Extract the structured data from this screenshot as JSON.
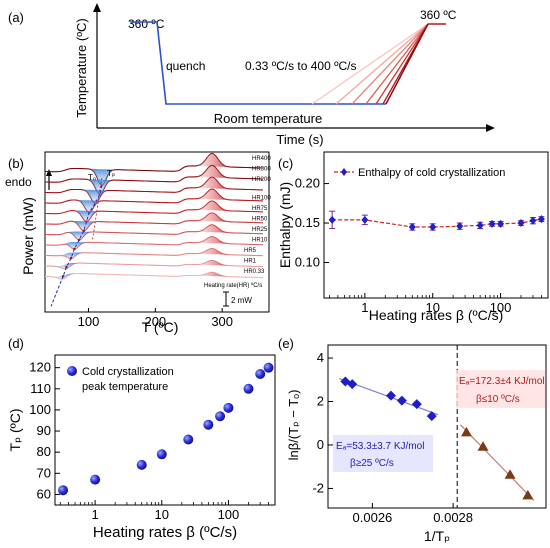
{
  "chart_data": [
    {
      "type": "line",
      "panel_label": "(a)",
      "ylabel": "Temperature (ºC)",
      "xlabel": "Time (s)",
      "annotations": {
        "start_temp": "360 ºC",
        "end_temp": "360 ºC",
        "quench": "quench",
        "room": "Room temperature",
        "rates": "0.33 ºC/s to 400 ºC/s"
      },
      "series": [
        {
          "segments": [
            "hold at 360",
            "quench",
            "room temperature hold",
            "heating ramps at 7 rates",
            "hold at 360"
          ]
        }
      ]
    },
    {
      "type": "line",
      "panel_label": "(b)",
      "ylabel": "Power (mW)",
      "xlabel": "T (ºC)",
      "endo_label": "endo",
      "x_ticks": [
        "100",
        "200",
        "300"
      ],
      "xlim": [
        35,
        370
      ],
      "peak_labels": [
        "T₀",
        "Tₚ"
      ],
      "scale_bar": "2 mW",
      "legend_note": "Heating rate(HR) ºC/s",
      "series": [
        {
          "name": "HR400",
          "tp": 120
        },
        {
          "name": "HR300",
          "tp": 117
        },
        {
          "name": "HR200",
          "tp": 110
        },
        {
          "name": "HR100",
          "tp": 101
        },
        {
          "name": "HR75",
          "tp": 97
        },
        {
          "name": "HR50",
          "tp": 93
        },
        {
          "name": "HR25",
          "tp": 86
        },
        {
          "name": "HR10",
          "tp": 79
        },
        {
          "name": "HR5",
          "tp": 74
        },
        {
          "name": "HR1",
          "tp": 67
        },
        {
          "name": "HR0.33",
          "tp": 62
        }
      ]
    },
    {
      "type": "scatter",
      "panel_label": "(c)",
      "xlabel": "Heating rates β (ºC/s)",
      "ylabel": "Enthalpy (mJ)",
      "xscale": "log",
      "xlim": [
        0.25,
        500
      ],
      "ylim": [
        0.055,
        0.24
      ],
      "x_ticks": [
        "1",
        "10",
        "100"
      ],
      "y_ticks": [
        "0.10",
        "0.15",
        "0.20"
      ],
      "legend": "Enthalpy of cold crystallization",
      "x": [
        0.33,
        1,
        5,
        10,
        25,
        50,
        75,
        100,
        200,
        300,
        400
      ],
      "y": [
        0.154,
        0.154,
        0.145,
        0.145,
        0.146,
        0.147,
        0.149,
        0.149,
        0.15,
        0.153,
        0.155
      ],
      "err": [
        0.011,
        0.006,
        0.004,
        0.004,
        0.004,
        0.004,
        0.003,
        0.003,
        0.003,
        0.004,
        0.003
      ]
    },
    {
      "type": "scatter",
      "panel_label": "(d)",
      "xlabel": "Heating rates β (ºC/s)",
      "ylabel": "Tₚ (ºC)",
      "xscale": "log",
      "xlim": [
        0.25,
        500
      ],
      "ylim": [
        55,
        126
      ],
      "x_ticks": [
        "1",
        "10",
        "100"
      ],
      "y_ticks": [
        "60",
        "70",
        "80",
        "90",
        "100",
        "110",
        "120"
      ],
      "legend": [
        "Cold crystallization",
        "peak temperature"
      ],
      "x": [
        0.33,
        1,
        5,
        10,
        25,
        50,
        75,
        100,
        200,
        300,
        400
      ],
      "y": [
        62,
        67,
        74,
        79,
        86,
        93,
        97,
        101,
        110,
        117,
        120
      ]
    },
    {
      "type": "scatter",
      "panel_label": "(e)",
      "xlabel": "1/Tₚ",
      "ylabel": "lnβ/(Tₚ − Tₒ)",
      "xlim": [
        0.00249,
        0.00303
      ],
      "ylim": [
        -2.9,
        4.6
      ],
      "x_ticks": [
        "0.0026",
        "0.0028"
      ],
      "y_ticks": [
        "-2",
        "0",
        "2",
        "4"
      ],
      "divider_x": 0.00281,
      "series": [
        {
          "name": "β≥25",
          "annotation": [
            "Eₐ=53.3±3.7 KJ/mol",
            "β≥25 ºC/s"
          ],
          "x": [
            0.002533,
            0.00255,
            0.002646,
            0.002673,
            0.00271,
            0.002747
          ],
          "y": [
            2.92,
            2.8,
            2.27,
            2.04,
            1.88,
            1.33
          ]
        },
        {
          "name": "β≤10",
          "annotation": [
            "Eₐ=172.3±4 KJ/mol",
            "β≤10 ºC/s"
          ],
          "x": [
            0.002833,
            0.002874,
            0.002941,
            0.002985
          ],
          "y": [
            0.58,
            -0.08,
            -1.37,
            -2.32
          ]
        }
      ]
    }
  ]
}
